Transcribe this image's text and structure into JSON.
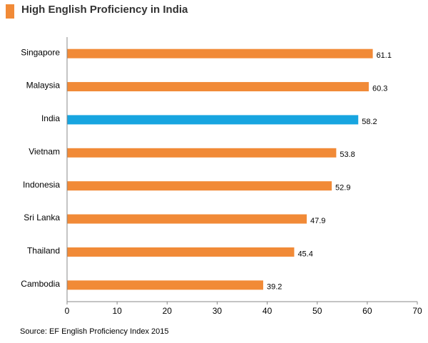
{
  "title": "High English Proficiency in India",
  "colors": {
    "accent": "#f18a37",
    "highlight": "#17a5e0",
    "axis": "#888888",
    "text": "#333333"
  },
  "chart_data": {
    "type": "bar",
    "orientation": "horizontal",
    "categories": [
      "Singapore",
      "Malaysia",
      "India",
      "Vietnam",
      "Indonesia",
      "Sri Lanka",
      "Thailand",
      "Cambodia"
    ],
    "values": [
      61.1,
      60.3,
      58.2,
      53.8,
      52.9,
      47.9,
      45.4,
      39.2
    ],
    "data_labels": [
      "61.1",
      "60.3",
      "58.2",
      "53.8",
      "52.9",
      "47.9",
      "45.4",
      "39.2"
    ],
    "highlight_category": "India",
    "xlim": [
      0,
      70
    ],
    "x_ticks": [
      0,
      10,
      20,
      30,
      40,
      50,
      60,
      70
    ],
    "grid": false,
    "legend": "none"
  },
  "source": "Source: EF English Proficiency Index 2015"
}
